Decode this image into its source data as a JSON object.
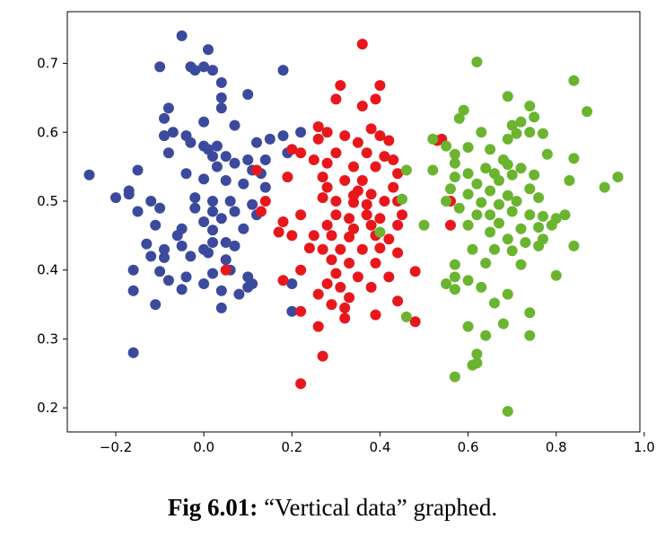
{
  "caption": {
    "label": "Fig 6.01:",
    "text": " “Vertical data” graphed."
  },
  "chart_data": {
    "type": "scatter",
    "title": "",
    "xlabel": "",
    "ylabel": "",
    "xlim": [
      -0.31,
      0.99
    ],
    "ylim": [
      0.165,
      0.775
    ],
    "xticks": [
      -0.2,
      0.0,
      0.2,
      0.4,
      0.6,
      0.8,
      1.0
    ],
    "xtick_labels": [
      "−0.2",
      "0.0",
      "0.2",
      "0.4",
      "0.6",
      "0.8",
      "1.0"
    ],
    "yticks": [
      0.2,
      0.3,
      0.4,
      0.5,
      0.6,
      0.7
    ],
    "ytick_labels": [
      "0.2",
      "0.3",
      "0.4",
      "0.5",
      "0.6",
      "0.7"
    ],
    "grid": false,
    "series": [
      {
        "color": "#3b4a9c",
        "points": [
          [
            -0.05,
            0.74
          ],
          [
            -0.1,
            0.695
          ],
          [
            -0.03,
            0.695
          ],
          [
            -0.02,
            0.69
          ],
          [
            0.0,
            0.695
          ],
          [
            0.02,
            0.69
          ],
          [
            0.01,
            0.72
          ],
          [
            0.18,
            0.69
          ],
          [
            0.04,
            0.672
          ],
          [
            0.04,
            0.65
          ],
          [
            0.1,
            0.655
          ],
          [
            -0.08,
            0.635
          ],
          [
            0.04,
            0.635
          ],
          [
            -0.09,
            0.62
          ],
          [
            0.0,
            0.615
          ],
          [
            0.07,
            0.61
          ],
          [
            -0.07,
            0.6
          ],
          [
            -0.09,
            0.595
          ],
          [
            -0.04,
            0.595
          ],
          [
            -0.03,
            0.585
          ],
          [
            0.0,
            0.58
          ],
          [
            0.03,
            0.58
          ],
          [
            0.12,
            0.585
          ],
          [
            0.15,
            0.59
          ],
          [
            0.18,
            0.595
          ],
          [
            0.22,
            0.6
          ],
          [
            -0.08,
            0.57
          ],
          [
            0.01,
            0.575
          ],
          [
            0.02,
            0.565
          ],
          [
            0.05,
            0.565
          ],
          [
            0.1,
            0.56
          ],
          [
            0.14,
            0.56
          ],
          [
            0.19,
            0.57
          ],
          [
            -0.15,
            0.545
          ],
          [
            -0.04,
            0.54
          ],
          [
            0.03,
            0.55
          ],
          [
            0.07,
            0.555
          ],
          [
            0.11,
            0.545
          ],
          [
            0.13,
            0.54
          ],
          [
            -0.26,
            0.538
          ],
          [
            0.0,
            0.532
          ],
          [
            0.05,
            0.53
          ],
          [
            0.09,
            0.525
          ],
          [
            0.14,
            0.52
          ],
          [
            -0.17,
            0.515
          ],
          [
            -0.2,
            0.505
          ],
          [
            -0.17,
            0.51
          ],
          [
            -0.12,
            0.5
          ],
          [
            -0.02,
            0.505
          ],
          [
            0.02,
            0.5
          ],
          [
            0.06,
            0.5
          ],
          [
            0.11,
            0.495
          ],
          [
            -0.1,
            0.49
          ],
          [
            -0.15,
            0.485
          ],
          [
            -0.02,
            0.49
          ],
          [
            0.02,
            0.485
          ],
          [
            0.07,
            0.485
          ],
          [
            0.12,
            0.48
          ],
          [
            0.0,
            0.47
          ],
          [
            0.04,
            0.475
          ],
          [
            -0.11,
            0.465
          ],
          [
            -0.05,
            0.46
          ],
          [
            0.02,
            0.458
          ],
          [
            0.09,
            0.46
          ],
          [
            -0.13,
            0.438
          ],
          [
            -0.09,
            0.43
          ],
          [
            -0.05,
            0.435
          ],
          [
            0.0,
            0.43
          ],
          [
            0.02,
            0.44
          ],
          [
            0.05,
            0.44
          ],
          [
            0.07,
            0.435
          ],
          [
            -0.12,
            0.42
          ],
          [
            -0.09,
            0.418
          ],
          [
            -0.03,
            0.42
          ],
          [
            0.01,
            0.425
          ],
          [
            0.05,
            0.415
          ],
          [
            -0.16,
            0.4
          ],
          [
            -0.1,
            0.398
          ],
          [
            -0.04,
            0.39
          ],
          [
            0.02,
            0.395
          ],
          [
            0.06,
            0.4
          ],
          [
            0.1,
            0.39
          ],
          [
            -0.16,
            0.37
          ],
          [
            -0.05,
            0.372
          ],
          [
            0.0,
            0.38
          ],
          [
            0.04,
            0.37
          ],
          [
            0.08,
            0.365
          ],
          [
            0.1,
            0.375
          ],
          [
            -0.11,
            0.35
          ],
          [
            0.04,
            0.345
          ],
          [
            0.2,
            0.34
          ],
          [
            -0.16,
            0.28
          ],
          [
            -0.08,
            0.385
          ],
          [
            0.2,
            0.38
          ],
          [
            0.11,
            0.38
          ],
          [
            -0.06,
            0.45
          ]
        ]
      },
      {
        "color": "#e8171c",
        "points": [
          [
            0.36,
            0.728
          ],
          [
            0.31,
            0.668
          ],
          [
            0.4,
            0.668
          ],
          [
            0.3,
            0.648
          ],
          [
            0.36,
            0.638
          ],
          [
            0.39,
            0.648
          ],
          [
            0.26,
            0.608
          ],
          [
            0.28,
            0.6
          ],
          [
            0.32,
            0.595
          ],
          [
            0.38,
            0.605
          ],
          [
            0.4,
            0.595
          ],
          [
            0.26,
            0.59
          ],
          [
            0.35,
            0.585
          ],
          [
            0.42,
            0.588
          ],
          [
            0.53,
            0.588
          ],
          [
            0.2,
            0.575
          ],
          [
            0.22,
            0.57
          ],
          [
            0.3,
            0.57
          ],
          [
            0.37,
            0.57
          ],
          [
            0.41,
            0.565
          ],
          [
            0.43,
            0.56
          ],
          [
            0.54,
            0.59
          ],
          [
            0.25,
            0.56
          ],
          [
            0.28,
            0.555
          ],
          [
            0.34,
            0.55
          ],
          [
            0.39,
            0.55
          ],
          [
            0.12,
            0.545
          ],
          [
            0.19,
            0.535
          ],
          [
            0.27,
            0.535
          ],
          [
            0.32,
            0.53
          ],
          [
            0.36,
            0.53
          ],
          [
            0.44,
            0.54
          ],
          [
            0.28,
            0.52
          ],
          [
            0.35,
            0.515
          ],
          [
            0.38,
            0.51
          ],
          [
            0.43,
            0.52
          ],
          [
            0.14,
            0.5
          ],
          [
            0.27,
            0.505
          ],
          [
            0.3,
            0.5
          ],
          [
            0.34,
            0.498
          ],
          [
            0.37,
            0.495
          ],
          [
            0.41,
            0.5
          ],
          [
            0.44,
            0.5
          ],
          [
            0.56,
            0.5
          ],
          [
            0.13,
            0.485
          ],
          [
            0.22,
            0.48
          ],
          [
            0.3,
            0.48
          ],
          [
            0.33,
            0.475
          ],
          [
            0.37,
            0.48
          ],
          [
            0.4,
            0.475
          ],
          [
            0.45,
            0.48
          ],
          [
            0.18,
            0.47
          ],
          [
            0.28,
            0.465
          ],
          [
            0.34,
            0.46
          ],
          [
            0.38,
            0.465
          ],
          [
            0.44,
            0.465
          ],
          [
            0.56,
            0.465
          ],
          [
            0.17,
            0.455
          ],
          [
            0.2,
            0.45
          ],
          [
            0.25,
            0.45
          ],
          [
            0.29,
            0.45
          ],
          [
            0.33,
            0.448
          ],
          [
            0.39,
            0.45
          ],
          [
            0.42,
            0.445
          ],
          [
            0.24,
            0.432
          ],
          [
            0.27,
            0.43
          ],
          [
            0.31,
            0.43
          ],
          [
            0.36,
            0.43
          ],
          [
            0.4,
            0.432
          ],
          [
            0.44,
            0.425
          ],
          [
            0.29,
            0.415
          ],
          [
            0.33,
            0.41
          ],
          [
            0.39,
            0.41
          ],
          [
            0.22,
            0.4
          ],
          [
            0.3,
            0.395
          ],
          [
            0.35,
            0.39
          ],
          [
            0.42,
            0.39
          ],
          [
            0.48,
            0.398
          ],
          [
            0.18,
            0.385
          ],
          [
            0.28,
            0.38
          ],
          [
            0.31,
            0.375
          ],
          [
            0.38,
            0.375
          ],
          [
            0.26,
            0.365
          ],
          [
            0.33,
            0.36
          ],
          [
            0.29,
            0.35
          ],
          [
            0.44,
            0.355
          ],
          [
            0.22,
            0.34
          ],
          [
            0.32,
            0.345
          ],
          [
            0.39,
            0.335
          ],
          [
            0.48,
            0.325
          ],
          [
            0.32,
            0.33
          ],
          [
            0.26,
            0.318
          ],
          [
            0.27,
            0.275
          ],
          [
            0.22,
            0.235
          ],
          [
            0.05,
            0.4
          ],
          [
            0.34,
            0.508
          ]
        ]
      },
      {
        "color": "#6ab430",
        "points": [
          [
            0.62,
            0.702
          ],
          [
            0.84,
            0.675
          ],
          [
            0.69,
            0.652
          ],
          [
            0.74,
            0.638
          ],
          [
            0.87,
            0.63
          ],
          [
            0.59,
            0.632
          ],
          [
            0.72,
            0.615
          ],
          [
            0.75,
            0.622
          ],
          [
            0.7,
            0.61
          ],
          [
            0.58,
            0.62
          ],
          [
            0.63,
            0.6
          ],
          [
            0.74,
            0.6
          ],
          [
            0.77,
            0.598
          ],
          [
            0.52,
            0.59
          ],
          [
            0.55,
            0.58
          ],
          [
            0.69,
            0.59
          ],
          [
            0.71,
            0.598
          ],
          [
            0.6,
            0.578
          ],
          [
            0.65,
            0.575
          ],
          [
            0.57,
            0.568
          ],
          [
            0.68,
            0.56
          ],
          [
            0.78,
            0.568
          ],
          [
            0.84,
            0.562
          ],
          [
            0.46,
            0.545
          ],
          [
            0.52,
            0.545
          ],
          [
            0.57,
            0.555
          ],
          [
            0.6,
            0.54
          ],
          [
            0.64,
            0.548
          ],
          [
            0.66,
            0.54
          ],
          [
            0.69,
            0.553
          ],
          [
            0.72,
            0.548
          ],
          [
            0.94,
            0.535
          ],
          [
            0.57,
            0.535
          ],
          [
            0.62,
            0.525
          ],
          [
            0.67,
            0.53
          ],
          [
            0.7,
            0.538
          ],
          [
            0.75,
            0.538
          ],
          [
            0.83,
            0.53
          ],
          [
            0.56,
            0.518
          ],
          [
            0.6,
            0.51
          ],
          [
            0.65,
            0.515
          ],
          [
            0.69,
            0.508
          ],
          [
            0.74,
            0.518
          ],
          [
            0.91,
            0.52
          ],
          [
            0.45,
            0.503
          ],
          [
            0.55,
            0.5
          ],
          [
            0.63,
            0.498
          ],
          [
            0.67,
            0.495
          ],
          [
            0.71,
            0.5
          ],
          [
            0.76,
            0.505
          ],
          [
            0.58,
            0.49
          ],
          [
            0.62,
            0.48
          ],
          [
            0.65,
            0.48
          ],
          [
            0.7,
            0.485
          ],
          [
            0.74,
            0.48
          ],
          [
            0.77,
            0.478
          ],
          [
            0.8,
            0.475
          ],
          [
            0.82,
            0.48
          ],
          [
            0.5,
            0.465
          ],
          [
            0.6,
            0.465
          ],
          [
            0.67,
            0.468
          ],
          [
            0.72,
            0.46
          ],
          [
            0.76,
            0.462
          ],
          [
            0.79,
            0.465
          ],
          [
            0.4,
            0.455
          ],
          [
            0.65,
            0.455
          ],
          [
            0.69,
            0.445
          ],
          [
            0.73,
            0.44
          ],
          [
            0.77,
            0.445
          ],
          [
            0.61,
            0.43
          ],
          [
            0.66,
            0.43
          ],
          [
            0.7,
            0.428
          ],
          [
            0.76,
            0.435
          ],
          [
            0.84,
            0.435
          ],
          [
            0.57,
            0.408
          ],
          [
            0.64,
            0.41
          ],
          [
            0.72,
            0.408
          ],
          [
            0.8,
            0.392
          ],
          [
            0.57,
            0.39
          ],
          [
            0.6,
            0.385
          ],
          [
            0.55,
            0.38
          ],
          [
            0.63,
            0.375
          ],
          [
            0.69,
            0.365
          ],
          [
            0.57,
            0.372
          ],
          [
            0.66,
            0.352
          ],
          [
            0.74,
            0.338
          ],
          [
            0.46,
            0.332
          ],
          [
            0.6,
            0.318
          ],
          [
            0.68,
            0.322
          ],
          [
            0.64,
            0.305
          ],
          [
            0.74,
            0.305
          ],
          [
            0.62,
            0.278
          ],
          [
            0.61,
            0.262
          ],
          [
            0.62,
            0.265
          ],
          [
            0.57,
            0.245
          ],
          [
            0.69,
            0.195
          ]
        ]
      }
    ]
  }
}
